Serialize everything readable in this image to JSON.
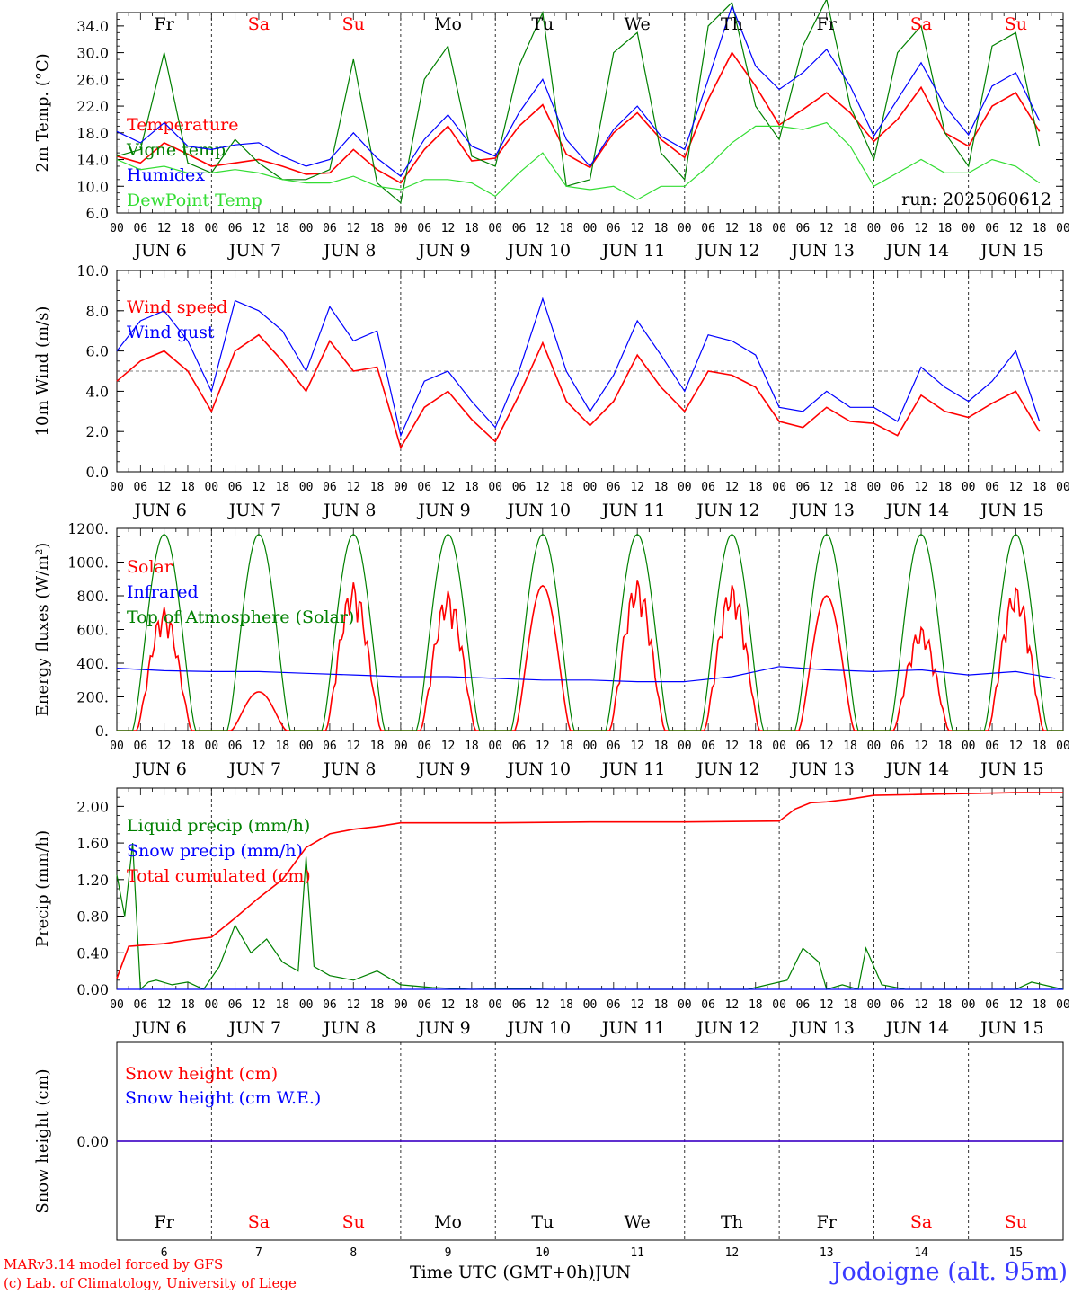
{
  "station": "Jodoigne (alt. 95m)",
  "run_label": "run: 2025060612",
  "credits": [
    "MARv3.14 model forced by GFS",
    "(c) Lab. of Climatology, University of Liege"
  ],
  "x_axis_title": "Time UTC (GMT+0h)",
  "month_label": "JUN",
  "hour_ticks": [
    "00",
    "06",
    "12",
    "18"
  ],
  "days": [
    {
      "date": "JUN  6",
      "num": "6",
      "weekday": "Fr",
      "weekend": false
    },
    {
      "date": "JUN  7",
      "num": "7",
      "weekday": "Sa",
      "weekend": true
    },
    {
      "date": "JUN  8",
      "num": "8",
      "weekday": "Su",
      "weekend": true
    },
    {
      "date": "JUN  9",
      "num": "9",
      "weekday": "Mo",
      "weekend": false
    },
    {
      "date": "JUN 10",
      "num": "10",
      "weekday": "Tu",
      "weekend": false
    },
    {
      "date": "JUN 11",
      "num": "11",
      "weekday": "We",
      "weekend": false
    },
    {
      "date": "JUN 12",
      "num": "12",
      "weekday": "Th",
      "weekend": false
    },
    {
      "date": "JUN 13",
      "num": "13",
      "weekday": "Fr",
      "weekend": false
    },
    {
      "date": "JUN 14",
      "num": "14",
      "weekday": "Sa",
      "weekend": true
    },
    {
      "date": "JUN 15",
      "num": "15",
      "weekday": "Su",
      "weekend": true
    }
  ],
  "colors": {
    "red": "#ff0000",
    "green": "#008000",
    "blue": "#0000ff",
    "lightgreen": "#33dd33",
    "weekend": "#ff0000"
  },
  "chart_data": [
    {
      "type": "line",
      "ylabel": "2m Temp. (°C)",
      "ylim": [
        6,
        36
      ],
      "yticks": [
        "6.0",
        "10.0",
        "14.0",
        "18.0",
        "22.0",
        "26.0",
        "30.0",
        "34.0"
      ],
      "ytick_values": [
        6,
        10,
        14,
        18,
        22,
        26,
        30,
        34
      ],
      "reference_line": null,
      "x_hours": [
        0,
        6,
        12,
        18,
        24,
        30,
        36,
        42,
        48,
        54,
        60,
        66,
        72,
        78,
        84,
        90,
        96,
        102,
        108,
        114,
        120,
        126,
        132,
        138,
        144,
        150,
        156,
        162,
        168,
        174,
        180,
        186,
        192,
        198,
        204,
        210,
        216,
        222,
        228,
        234
      ],
      "series": [
        {
          "name": "Temperature",
          "color": "#ff0000",
          "values": [
            14.5,
            13.5,
            16.5,
            14.8,
            13.0,
            13.5,
            14.0,
            13.0,
            11.8,
            12.0,
            15.5,
            12.5,
            10.5,
            15.5,
            19.0,
            13.8,
            14.2,
            19.0,
            22.2,
            14.8,
            12.8,
            18.0,
            21.0,
            17.0,
            14.3,
            23.0,
            30.0,
            25.0,
            19.2,
            21.5,
            24.0,
            21.0,
            16.7,
            20.0,
            24.8,
            18.0,
            16.0,
            22.0,
            24.0,
            18.2
          ]
        },
        {
          "name": "Vigne temp",
          "color": "#008000",
          "values": [
            14.5,
            15.5,
            30.0,
            13.5,
            12.0,
            17.0,
            13.5,
            11.0,
            11.0,
            12.5,
            29.0,
            10.5,
            7.5,
            26.0,
            31.0,
            14.5,
            13.0,
            28.0,
            36.0,
            10.0,
            11.0,
            30.0,
            33.0,
            15.0,
            11.0,
            34.0,
            37.5,
            22.0,
            17.0,
            31.0,
            38.0,
            22.0,
            14.0,
            30.0,
            34.0,
            18.0,
            13.0,
            31.0,
            33.0,
            16.0
          ]
        },
        {
          "name": "Humidex",
          "color": "#0000ff",
          "values": [
            18.2,
            16.5,
            19.5,
            16.0,
            15.5,
            16.2,
            16.5,
            14.5,
            13.0,
            14.0,
            18.0,
            14.2,
            11.5,
            17.0,
            20.7,
            16.0,
            14.5,
            21.0,
            26.0,
            17.0,
            13.0,
            18.5,
            22.0,
            17.5,
            15.5,
            26.0,
            37.0,
            28.0,
            24.5,
            27.0,
            30.5,
            25.0,
            17.5,
            23.0,
            28.5,
            22.0,
            17.7,
            25.0,
            27.0,
            19.8
          ]
        },
        {
          "name": "DewPoint Temp",
          "color": "#33dd33",
          "values": [
            14.0,
            12.5,
            13.0,
            12.0,
            12.0,
            12.5,
            12.0,
            11.0,
            10.5,
            10.5,
            11.5,
            10.0,
            9.5,
            11.0,
            11.0,
            10.5,
            8.5,
            12.0,
            15.0,
            10.0,
            9.5,
            10.0,
            8.0,
            10.0,
            10.0,
            13.0,
            16.5,
            19.0,
            19.0,
            18.5,
            19.5,
            16.0,
            10.0,
            12.0,
            14.0,
            12.0,
            12.0,
            14.0,
            13.0,
            10.5
          ]
        }
      ]
    },
    {
      "type": "line",
      "ylabel": "10m Wind (m/s)",
      "ylim": [
        0,
        10
      ],
      "yticks": [
        "0.0",
        "2.0",
        "4.0",
        "6.0",
        "8.0",
        "10.0"
      ],
      "ytick_values": [
        0,
        2,
        4,
        6,
        8,
        10
      ],
      "reference_line": 5,
      "x_hours": [
        0,
        6,
        12,
        18,
        24,
        30,
        36,
        42,
        48,
        54,
        60,
        66,
        72,
        78,
        84,
        90,
        96,
        102,
        108,
        114,
        120,
        126,
        132,
        138,
        144,
        150,
        156,
        162,
        168,
        174,
        180,
        186,
        192,
        198,
        204,
        210,
        216,
        222,
        228,
        234
      ],
      "series": [
        {
          "name": "Wind speed",
          "color": "#ff0000",
          "values": [
            4.5,
            5.5,
            6.0,
            5.0,
            3.0,
            6.0,
            6.8,
            5.5,
            4.0,
            6.5,
            5.0,
            5.2,
            1.2,
            3.2,
            4.0,
            2.6,
            1.5,
            3.8,
            6.4,
            3.5,
            2.3,
            3.5,
            5.8,
            4.2,
            3.0,
            5.0,
            4.8,
            4.2,
            2.5,
            2.2,
            3.2,
            2.5,
            2.4,
            1.8,
            3.8,
            3.0,
            2.7,
            3.4,
            4.0,
            2.0
          ]
        },
        {
          "name": "Wind gust",
          "color": "#0000ff",
          "values": [
            6.0,
            7.5,
            8.0,
            6.5,
            4.0,
            8.5,
            8.0,
            7.0,
            5.0,
            8.2,
            6.5,
            7.0,
            1.8,
            4.5,
            5.0,
            3.5,
            2.2,
            5.0,
            8.6,
            5.0,
            3.0,
            4.8,
            7.5,
            5.8,
            4.0,
            6.8,
            6.5,
            5.8,
            3.2,
            3.0,
            4.0,
            3.2,
            3.2,
            2.5,
            5.2,
            4.2,
            3.5,
            4.5,
            6.0,
            2.5
          ]
        }
      ]
    },
    {
      "type": "line",
      "ylabel": "Energy fluxes (W/m²)",
      "ylim": [
        0,
        1200
      ],
      "yticks": [
        "0.",
        "200.",
        "400.",
        "600.",
        "800.",
        "1000.",
        "1200."
      ],
      "ytick_values": [
        0,
        200,
        400,
        600,
        800,
        1000,
        1200
      ],
      "reference_line": null,
      "series": [
        {
          "name": "Solar",
          "color": "#ff0000",
          "day_peaks": [
            730,
            230,
            880,
            830,
            860,
            900,
            870,
            800,
            620,
            860
          ]
        },
        {
          "name": "Infrared",
          "color": "#0000ff",
          "x_hours": [
            0,
            12,
            24,
            36,
            48,
            60,
            72,
            84,
            96,
            108,
            120,
            132,
            144,
            156,
            168,
            180,
            192,
            204,
            216,
            228,
            238
          ],
          "values": [
            370,
            355,
            350,
            350,
            340,
            330,
            320,
            320,
            310,
            300,
            300,
            290,
            290,
            320,
            380,
            360,
            350,
            360,
            330,
            350,
            310
          ]
        },
        {
          "name": "Top of Atmosphere (Solar)",
          "color": "#008000",
          "day_peaks": [
            1165,
            1165,
            1165,
            1165,
            1165,
            1165,
            1165,
            1165,
            1165,
            1165
          ]
        }
      ]
    },
    {
      "type": "line",
      "ylabel": "Precip (mm/h)",
      "ylim": [
        0,
        2.2
      ],
      "yticks": [
        "0.00",
        "0.40",
        "0.80",
        "1.20",
        "1.60",
        "2.00"
      ],
      "ytick_values": [
        0,
        0.4,
        0.8,
        1.2,
        1.6,
        2.0
      ],
      "reference_line": null,
      "series": [
        {
          "name": "Liquid precip (mm/h)",
          "color": "#008000",
          "x_hours": [
            0,
            2,
            4,
            6,
            8,
            10,
            14,
            18,
            22,
            26,
            30,
            34,
            38,
            42,
            46,
            48,
            50,
            54,
            60,
            66,
            72,
            80,
            90,
            100,
            110,
            120,
            140,
            160,
            170,
            174,
            178,
            180,
            184,
            188,
            190,
            194,
            200,
            210,
            228,
            232,
            240
          ],
          "values": [
            1.25,
            0.8,
            1.6,
            0,
            0.08,
            0.1,
            0.05,
            0.08,
            0,
            0.25,
            0.7,
            0.4,
            0.55,
            0.3,
            0.2,
            1.45,
            0.25,
            0.15,
            0.1,
            0.2,
            0.05,
            0.02,
            0,
            0.01,
            0,
            0,
            0,
            0,
            0.1,
            0.45,
            0.3,
            0,
            0.05,
            0,
            0.45,
            0.05,
            0,
            0,
            0,
            0.08,
            0
          ]
        },
        {
          "name": "Snow precip (mm/h)",
          "color": "#0000ff",
          "x_hours": [
            0,
            240
          ],
          "values": [
            0,
            0
          ]
        },
        {
          "name": "Total cumulated (cm)",
          "color": "#ff0000",
          "x_hours": [
            0,
            3,
            6,
            12,
            18,
            24,
            30,
            36,
            42,
            48,
            54,
            60,
            66,
            72,
            84,
            96,
            120,
            144,
            168,
            172,
            176,
            180,
            186,
            192,
            204,
            216,
            228,
            240
          ],
          "values": [
            0.12,
            0.47,
            0.48,
            0.5,
            0.54,
            0.57,
            0.78,
            1.0,
            1.2,
            1.55,
            1.7,
            1.75,
            1.78,
            1.82,
            1.82,
            1.82,
            1.83,
            1.83,
            1.84,
            1.97,
            2.04,
            2.05,
            2.08,
            2.12,
            2.13,
            2.14,
            2.15,
            2.15
          ]
        }
      ]
    },
    {
      "type": "line",
      "ylabel": "Snow height (cm)",
      "ylim": [
        -1,
        1
      ],
      "yticks": [
        "0.00"
      ],
      "ytick_values": [
        0
      ],
      "reference_line": null,
      "series": [
        {
          "name": "Snow height (cm)",
          "color": "#ff0000",
          "x_hours": [
            0,
            240
          ],
          "values": [
            0,
            0
          ]
        },
        {
          "name": "Snow height (cm W.E.)",
          "color": "#0000ff",
          "x_hours": [
            0,
            240
          ],
          "values": [
            0,
            0
          ]
        }
      ]
    }
  ]
}
